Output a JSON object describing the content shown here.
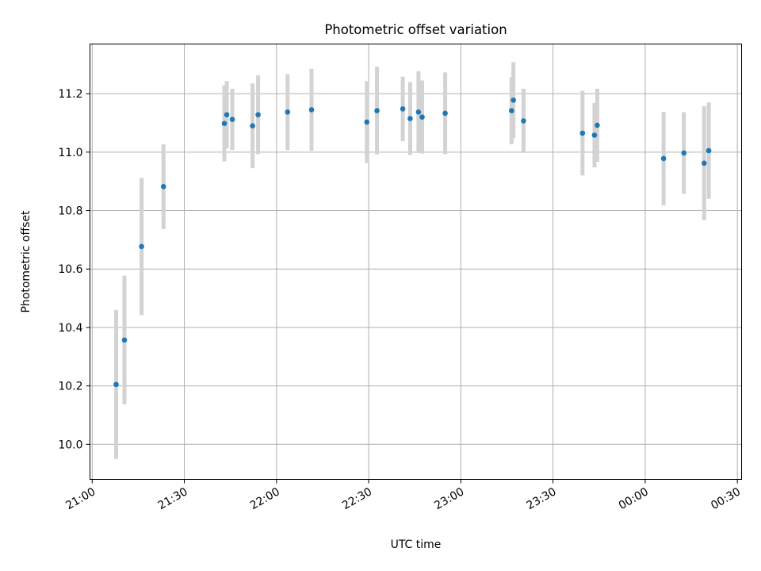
{
  "chart_data": {
    "type": "scatter",
    "title": "Photometric offset variation",
    "xlabel": "UTC time",
    "ylabel": "Photometric offset",
    "x_unit": "minutes",
    "xlim": [
      -1.2,
      352.3
    ],
    "ylim": [
      9.88,
      11.37
    ],
    "grid": true,
    "x_ticks": [
      {
        "value": 0,
        "label": "21:00"
      },
      {
        "value": 50,
        "label": "21:30"
      },
      {
        "value": 100,
        "label": "22:00"
      },
      {
        "value": 150,
        "label": "22:30"
      },
      {
        "value": 200,
        "label": "23:00"
      },
      {
        "value": 250,
        "label": "23:30"
      },
      {
        "value": 300,
        "label": "00:00"
      },
      {
        "value": 350,
        "label": "00:30"
      }
    ],
    "y_ticks": [
      {
        "value": 10.0,
        "label": "10.0"
      },
      {
        "value": 10.2,
        "label": "10.2"
      },
      {
        "value": 10.4,
        "label": "10.4"
      },
      {
        "value": 10.6,
        "label": "10.6"
      },
      {
        "value": 10.8,
        "label": "10.8"
      },
      {
        "value": 11.0,
        "label": "11.0"
      },
      {
        "value": 11.2,
        "label": "11.2"
      }
    ],
    "points": [
      {
        "x": 13.0,
        "y": 10.205,
        "err": 0.255
      },
      {
        "x": 17.5,
        "y": 10.357,
        "err": 0.22
      },
      {
        "x": 26.8,
        "y": 10.677,
        "err": 0.235
      },
      {
        "x": 38.7,
        "y": 10.882,
        "err": 0.145
      },
      {
        "x": 71.7,
        "y": 11.098,
        "err": 0.13
      },
      {
        "x": 73.0,
        "y": 11.128,
        "err": 0.115
      },
      {
        "x": 76.0,
        "y": 11.112,
        "err": 0.105
      },
      {
        "x": 87.0,
        "y": 11.09,
        "err": 0.145
      },
      {
        "x": 90.0,
        "y": 11.128,
        "err": 0.135
      },
      {
        "x": 106.0,
        "y": 11.137,
        "err": 0.13
      },
      {
        "x": 119.0,
        "y": 11.145,
        "err": 0.14
      },
      {
        "x": 149.0,
        "y": 11.103,
        "err": 0.14
      },
      {
        "x": 154.5,
        "y": 11.142,
        "err": 0.15
      },
      {
        "x": 168.5,
        "y": 11.148,
        "err": 0.11
      },
      {
        "x": 172.5,
        "y": 11.115,
        "err": 0.125
      },
      {
        "x": 177.0,
        "y": 11.137,
        "err": 0.14
      },
      {
        "x": 179.0,
        "y": 11.12,
        "err": 0.125
      },
      {
        "x": 191.5,
        "y": 11.133,
        "err": 0.14
      },
      {
        "x": 227.5,
        "y": 11.142,
        "err": 0.115
      },
      {
        "x": 228.5,
        "y": 11.178,
        "err": 0.13
      },
      {
        "x": 234.0,
        "y": 11.107,
        "err": 0.11
      },
      {
        "x": 266.0,
        "y": 11.065,
        "err": 0.145
      },
      {
        "x": 272.5,
        "y": 11.058,
        "err": 0.11
      },
      {
        "x": 274.0,
        "y": 11.092,
        "err": 0.125
      },
      {
        "x": 310.0,
        "y": 10.978,
        "err": 0.16
      },
      {
        "x": 321.0,
        "y": 10.997,
        "err": 0.14
      },
      {
        "x": 332.0,
        "y": 10.962,
        "err": 0.195
      },
      {
        "x": 334.5,
        "y": 11.005,
        "err": 0.165
      }
    ],
    "colors": {
      "marker": "#1f77b4",
      "errorbar": "#d3d3d3",
      "grid": "#b0b0b0",
      "axes": "#000000"
    }
  }
}
